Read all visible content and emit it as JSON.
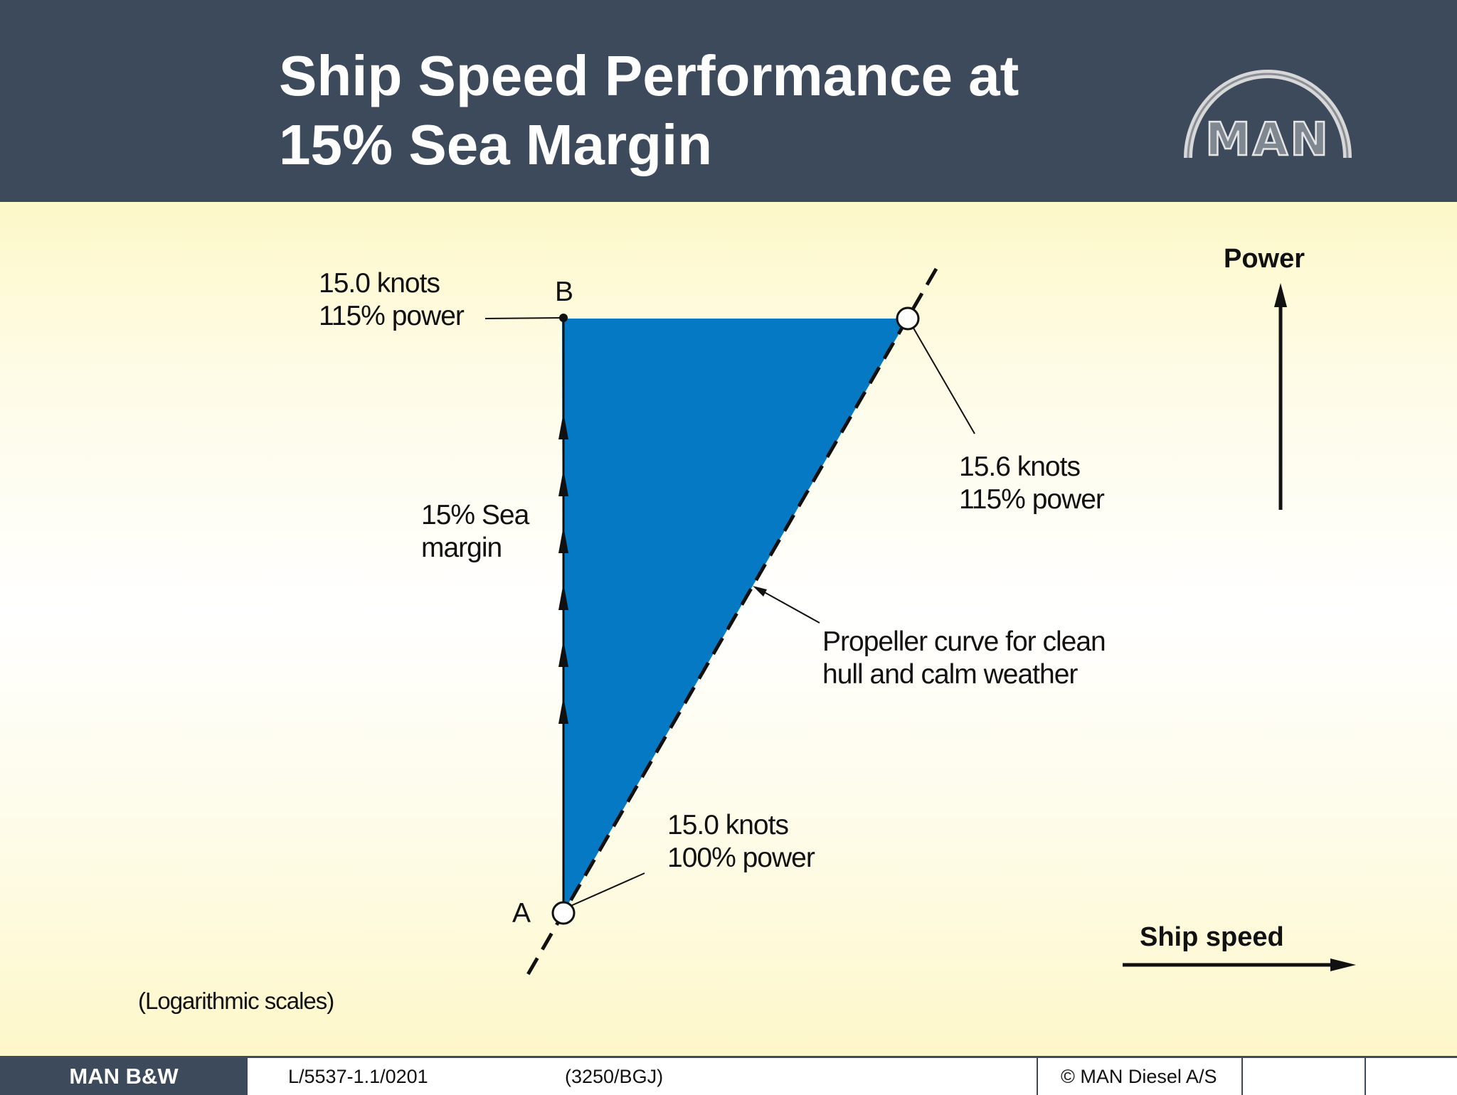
{
  "title": {
    "line1": "Ship Speed Performance at",
    "line2": "15% Sea Margin"
  },
  "logo": {
    "text": "MAN",
    "icon": "man-arch-logo"
  },
  "diagram": {
    "point_b": {
      "letter": "B",
      "speed": "15.0 knots",
      "power": "115% power"
    },
    "point_a": {
      "letter": "A",
      "speed": "15.0 knots",
      "power": "100% power"
    },
    "point_c": {
      "speed": "15.6 knots",
      "power": "115% power"
    },
    "sea_margin": {
      "line1": "15% Sea",
      "line2": "margin"
    },
    "propeller_curve": {
      "line1": "Propeller curve for clean",
      "line2": "hull and calm weather"
    },
    "axis_power": "Power",
    "axis_speed": "Ship speed",
    "scale_note": "(Logarithmic scales)",
    "fill_color": "#0579c3"
  },
  "footer": {
    "brand": "MAN B&W",
    "doc_ref": "L/5537-1.1/0201",
    "code": "(3250/BGJ)",
    "copyright": "© MAN Diesel A/S"
  }
}
